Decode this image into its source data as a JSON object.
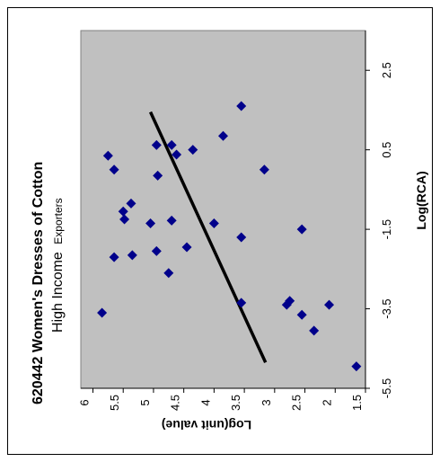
{
  "chart_data": {
    "type": "scatter",
    "title": "620442  Women's Dresses of Cotton",
    "subtitle": {
      "main": "High Income",
      "suffix": "Exporters"
    },
    "xlabel": "Log(RCA)",
    "ylabel": "Log(unit value)",
    "xlim": [
      -5.5,
      3.5
    ],
    "ylim": [
      1.5,
      6.2
    ],
    "x_ticks": [
      "-5.5",
      "-3.5",
      "-1.5",
      "0.5",
      "2.5"
    ],
    "x_tick_values": [
      -5.5,
      -3.5,
      -1.5,
      0.5,
      2.5
    ],
    "y_ticks": [
      "6",
      "5.5",
      "5",
      "4.5",
      "4",
      "3.5",
      "3",
      "2.5",
      "2",
      "1.5"
    ],
    "y_tick_values": [
      6,
      5.5,
      5,
      4.5,
      4,
      3.5,
      3,
      2.5,
      2,
      1.5
    ],
    "rotation": "chart rotated 90 degrees counter-clockwise",
    "grid": false,
    "plot_background": "#c0c0c0",
    "marker_color": "#00008b",
    "line_color": "#000000",
    "points": [
      {
        "x": -3.6,
        "y": 5.85
      },
      {
        "x": 0.35,
        "y": 5.75
      },
      {
        "x": 0.0,
        "y": 5.65
      },
      {
        "x": -2.2,
        "y": 5.65
      },
      {
        "x": -1.05,
        "y": 5.5
      },
      {
        "x": -1.25,
        "y": 5.48
      },
      {
        "x": -0.85,
        "y": 5.37
      },
      {
        "x": -2.15,
        "y": 5.35
      },
      {
        "x": -1.35,
        "y": 5.05
      },
      {
        "x": -2.05,
        "y": 4.95
      },
      {
        "x": 0.62,
        "y": 4.95
      },
      {
        "x": -0.15,
        "y": 4.93
      },
      {
        "x": -2.6,
        "y": 4.75
      },
      {
        "x": 0.62,
        "y": 4.7
      },
      {
        "x": -1.28,
        "y": 4.7
      },
      {
        "x": 0.38,
        "y": 4.62
      },
      {
        "x": -1.95,
        "y": 4.45
      },
      {
        "x": 0.5,
        "y": 4.35
      },
      {
        "x": -1.35,
        "y": 4.0
      },
      {
        "x": 0.85,
        "y": 3.85
      },
      {
        "x": 1.6,
        "y": 3.55
      },
      {
        "x": -1.7,
        "y": 3.55
      },
      {
        "x": -3.35,
        "y": 3.55
      },
      {
        "x": 0.0,
        "y": 3.17
      },
      {
        "x": -3.3,
        "y": 2.75
      },
      {
        "x": -3.4,
        "y": 2.8
      },
      {
        "x": -1.5,
        "y": 2.55
      },
      {
        "x": -3.65,
        "y": 2.55
      },
      {
        "x": -4.05,
        "y": 2.35
      },
      {
        "x": -3.4,
        "y": 2.1
      },
      {
        "x": -4.95,
        "y": 1.65
      }
    ],
    "trend_line": [
      {
        "x": -4.85,
        "y": 3.15
      },
      {
        "x": 1.45,
        "y": 5.05
      }
    ]
  }
}
